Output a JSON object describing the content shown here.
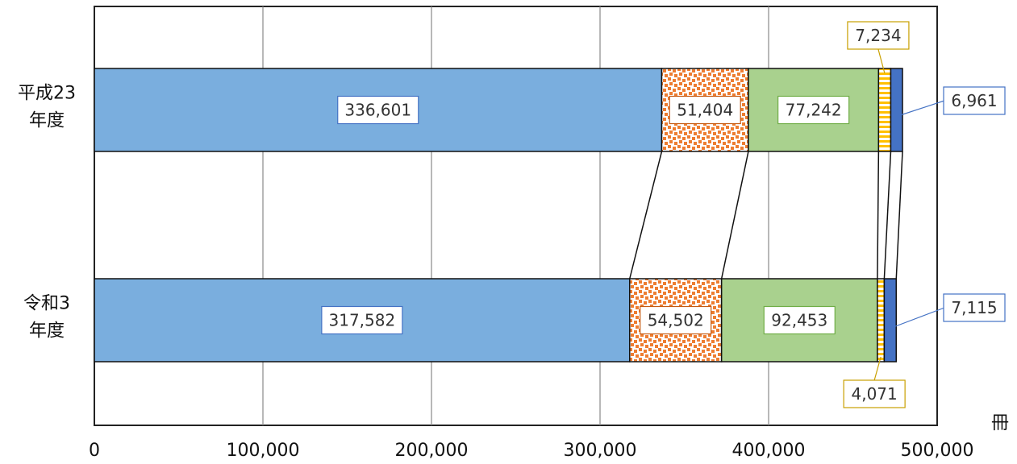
{
  "chart_data": {
    "type": "bar",
    "orientation": "horizontal",
    "stacked": true,
    "unit": "冊",
    "xlim": [
      0,
      500000
    ],
    "xticks": [
      "0",
      "100,000",
      "200,000",
      "300,000",
      "400,000",
      "500,000"
    ],
    "grid": true,
    "categories": [
      {
        "lines": [
          "平成23",
          "年度"
        ]
      },
      {
        "lines": [
          "令和3",
          "年度"
        ]
      }
    ],
    "series": [
      {
        "color": "#7aaede",
        "pattern": "solid",
        "values": [
          336601,
          317582
        ],
        "labels": [
          "336,601",
          "317,582"
        ],
        "label_border": "#4472c4"
      },
      {
        "color": "#ed7d31",
        "pattern": "checker",
        "values": [
          51404,
          54502
        ],
        "labels": [
          "51,404",
          "54,502"
        ],
        "label_border": "#c55a11"
      },
      {
        "color": "#a9d18e",
        "pattern": "solid",
        "values": [
          77242,
          92453
        ],
        "labels": [
          "77,242",
          "92,453"
        ],
        "label_border": "#70ad47"
      },
      {
        "color": "#ffc000",
        "pattern": "hstripe",
        "values": [
          7234,
          4071
        ],
        "labels": [
          "7,234",
          "4,071"
        ],
        "label_border": "#c9a000"
      },
      {
        "color": "#4472c4",
        "pattern": "solid",
        "values": [
          6961,
          7115
        ],
        "labels": [
          "6,961",
          "7,115"
        ],
        "label_border": "#4472c4"
      }
    ]
  }
}
